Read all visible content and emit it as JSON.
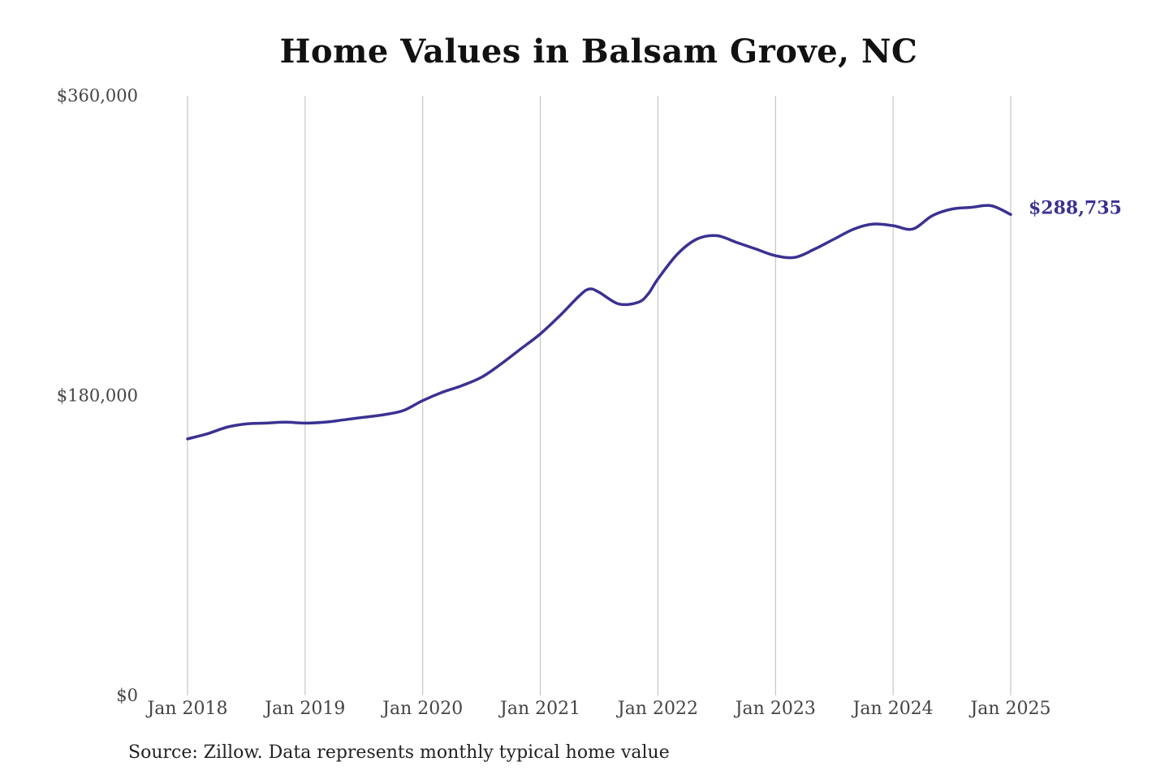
{
  "title": "Home Values in Balsam Grove, NC",
  "source_note": "Source: Zillow. Data represents monthly typical home value",
  "colors": {
    "line": "#3b3192",
    "grid": "#bbbbbb"
  },
  "chart_data": {
    "type": "line",
    "title": "Home Values in Balsam Grove, NC",
    "xlabel": "",
    "ylabel": "",
    "ylim": [
      0,
      360000
    ],
    "yticks": [
      {
        "value": 0,
        "label": "$0"
      },
      {
        "value": 180000,
        "label": "$180,000"
      },
      {
        "value": 360000,
        "label": "$360,000"
      }
    ],
    "xlim": [
      "2018-01",
      "2025-01"
    ],
    "xticks": [
      {
        "value": "2018-01",
        "label": "Jan 2018"
      },
      {
        "value": "2019-01",
        "label": "Jan 2019"
      },
      {
        "value": "2020-01",
        "label": "Jan 2020"
      },
      {
        "value": "2021-01",
        "label": "Jan 2021"
      },
      {
        "value": "2022-01",
        "label": "Jan 2022"
      },
      {
        "value": "2023-01",
        "label": "Jan 2023"
      },
      {
        "value": "2024-01",
        "label": "Jan 2024"
      },
      {
        "value": "2025-01",
        "label": "Jan 2025"
      }
    ],
    "grid": "vertical",
    "end_label": "$288,735",
    "series": [
      {
        "x": [
          "2018-01",
          "2018-03",
          "2018-05",
          "2018-07",
          "2018-09",
          "2018-11",
          "2019-01",
          "2019-03",
          "2019-05",
          "2019-07",
          "2019-09",
          "2019-11",
          "2020-01",
          "2020-03",
          "2020-05",
          "2020-07",
          "2020-09",
          "2020-11",
          "2021-01",
          "2021-03",
          "2021-05",
          "2021-06",
          "2021-07",
          "2021-09",
          "2021-11",
          "2021-12",
          "2022-01",
          "2022-03",
          "2022-05",
          "2022-07",
          "2022-09",
          "2022-11",
          "2023-01",
          "2023-03",
          "2023-05",
          "2023-07",
          "2023-09",
          "2023-11",
          "2024-01",
          "2024-03",
          "2024-05",
          "2024-07",
          "2024-09",
          "2024-11",
          "2025-01"
        ],
        "values": [
          154000,
          157000,
          161000,
          163000,
          163500,
          164000,
          163500,
          164000,
          165500,
          167000,
          168500,
          171000,
          177000,
          182000,
          186000,
          191000,
          199000,
          208000,
          217000,
          228000,
          240000,
          244000,
          242000,
          235000,
          236000,
          241000,
          250000,
          265000,
          274000,
          276000,
          272000,
          268000,
          264000,
          263000,
          268000,
          274000,
          280000,
          283000,
          282000,
          280000,
          288000,
          292000,
          293000,
          294000,
          288735
        ]
      }
    ]
  }
}
